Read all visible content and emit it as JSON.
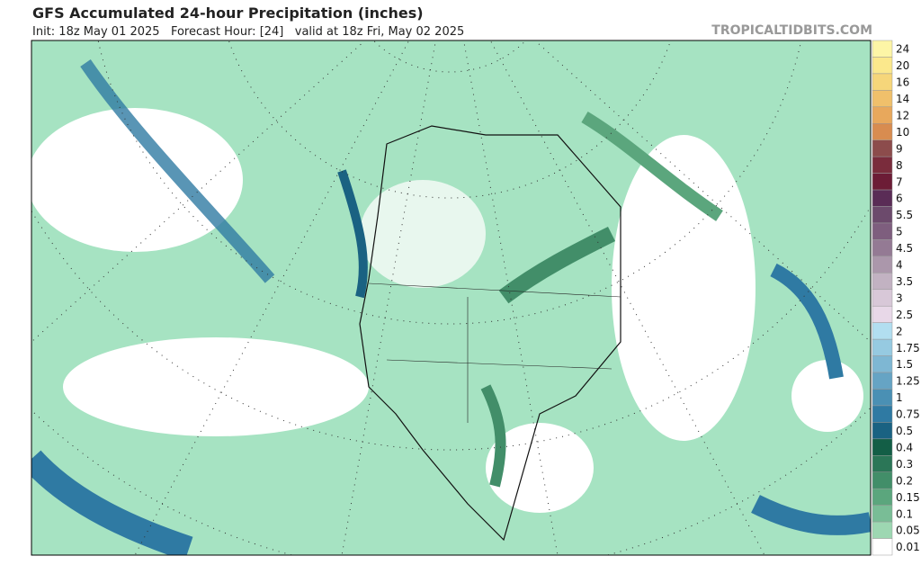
{
  "header": {
    "title": "GFS Accumulated 24-hour Precipitation (inches)",
    "subtitle": "Init: 18z May 01 2025   Forecast Hour: [24]   valid at 18z Fri, May 02 2025",
    "brand": "TROPICALTIDBITS.COM"
  },
  "legend": [
    {
      "label": "24",
      "color": "#fdf5a6"
    },
    {
      "label": "20",
      "color": "#fbe88c"
    },
    {
      "label": "16",
      "color": "#f6d67a"
    },
    {
      "label": "14",
      "color": "#f0c06b"
    },
    {
      "label": "12",
      "color": "#e8a85c"
    },
    {
      "label": "10",
      "color": "#d88c50"
    },
    {
      "label": "9",
      "color": "#8c4c4c"
    },
    {
      "label": "8",
      "color": "#7a2c3c"
    },
    {
      "label": "7",
      "color": "#6c1c36"
    },
    {
      "label": "6",
      "color": "#5a2c56"
    },
    {
      "label": "5.5",
      "color": "#6c4a6c"
    },
    {
      "label": "5",
      "color": "#7e5e7e"
    },
    {
      "label": "4.5",
      "color": "#947a94"
    },
    {
      "label": "4",
      "color": "#ab97ab"
    },
    {
      "label": "3.5",
      "color": "#c2b2c2"
    },
    {
      "label": "3",
      "color": "#d8c8d8"
    },
    {
      "label": "2.5",
      "color": "#e8d8e8"
    },
    {
      "label": "2",
      "color": "#b2def0"
    },
    {
      "label": "1.75",
      "color": "#96cae1"
    },
    {
      "label": "1.5",
      "color": "#7eb7d3"
    },
    {
      "label": "1.25",
      "color": "#66a4c4"
    },
    {
      "label": "1",
      "color": "#4a90b4"
    },
    {
      "label": "0.75",
      "color": "#2f7aa3"
    },
    {
      "label": "0.5",
      "color": "#1a6282"
    },
    {
      "label": "0.4",
      "color": "#135e46"
    },
    {
      "label": "0.3",
      "color": "#2b7657"
    },
    {
      "label": "0.2",
      "color": "#428e69"
    },
    {
      "label": "0.15",
      "color": "#5ba67d"
    },
    {
      "label": "0.1",
      "color": "#79bd96"
    },
    {
      "label": "0.05",
      "color": "#9dd7b2"
    },
    {
      "label": "0.01",
      "color": "#ffffff"
    }
  ]
}
